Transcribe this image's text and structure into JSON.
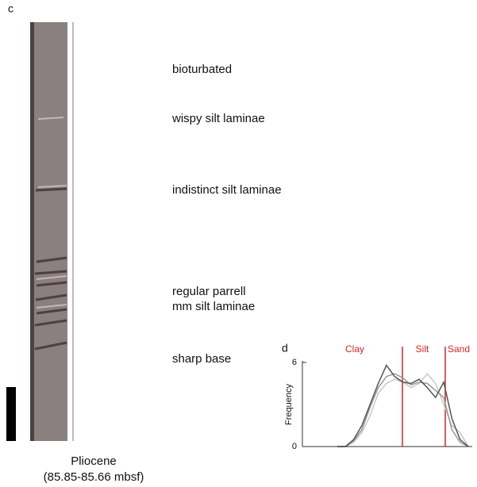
{
  "panel_c": {
    "label": "c",
    "annotations": [
      "bioturbated",
      "wispy silt laminae",
      "indistinct silt laminae",
      "regular parrell",
      "mm silt laminae",
      "sharp base"
    ],
    "caption": [
      "Pliocene",
      "(85.85-85.66 mbsf)"
    ]
  },
  "chart_data": {
    "type": "line",
    "panel_label": "d",
    "y_label": "Frequency",
    "zones": [
      "Clay",
      "Silt",
      "Sand"
    ],
    "categories": [
      null,
      null,
      null,
      null,
      null,
      null,
      null,
      null,
      null,
      null,
      null,
      null,
      null,
      null,
      null,
      null,
      null
    ],
    "series": [
      {
        "color": "#c8c8c8",
        "values": [
          0,
          0,
          0.3,
          1,
          2.2,
          3.8,
          4.5,
          4.8,
          4.6,
          4.2,
          4.5,
          5.2,
          4.5,
          3,
          1.5,
          1,
          0
        ]
      },
      {
        "color": "#999999",
        "values": [
          0,
          0,
          0.4,
          1.2,
          2.8,
          4.2,
          5,
          5.2,
          4.9,
          4.4,
          4.6,
          4.5,
          4,
          3.5,
          1.2,
          0.3,
          0
        ]
      },
      {
        "color": "#555555",
        "values": [
          0,
          0,
          0.5,
          1.5,
          3,
          4.5,
          5.8,
          5,
          4.6,
          4.5,
          4.8,
          4.2,
          3.5,
          4.6,
          2,
          0.5,
          0
        ]
      }
    ],
    "ylim": [
      0,
      6
    ],
    "yticks": [
      0,
      6
    ]
  }
}
